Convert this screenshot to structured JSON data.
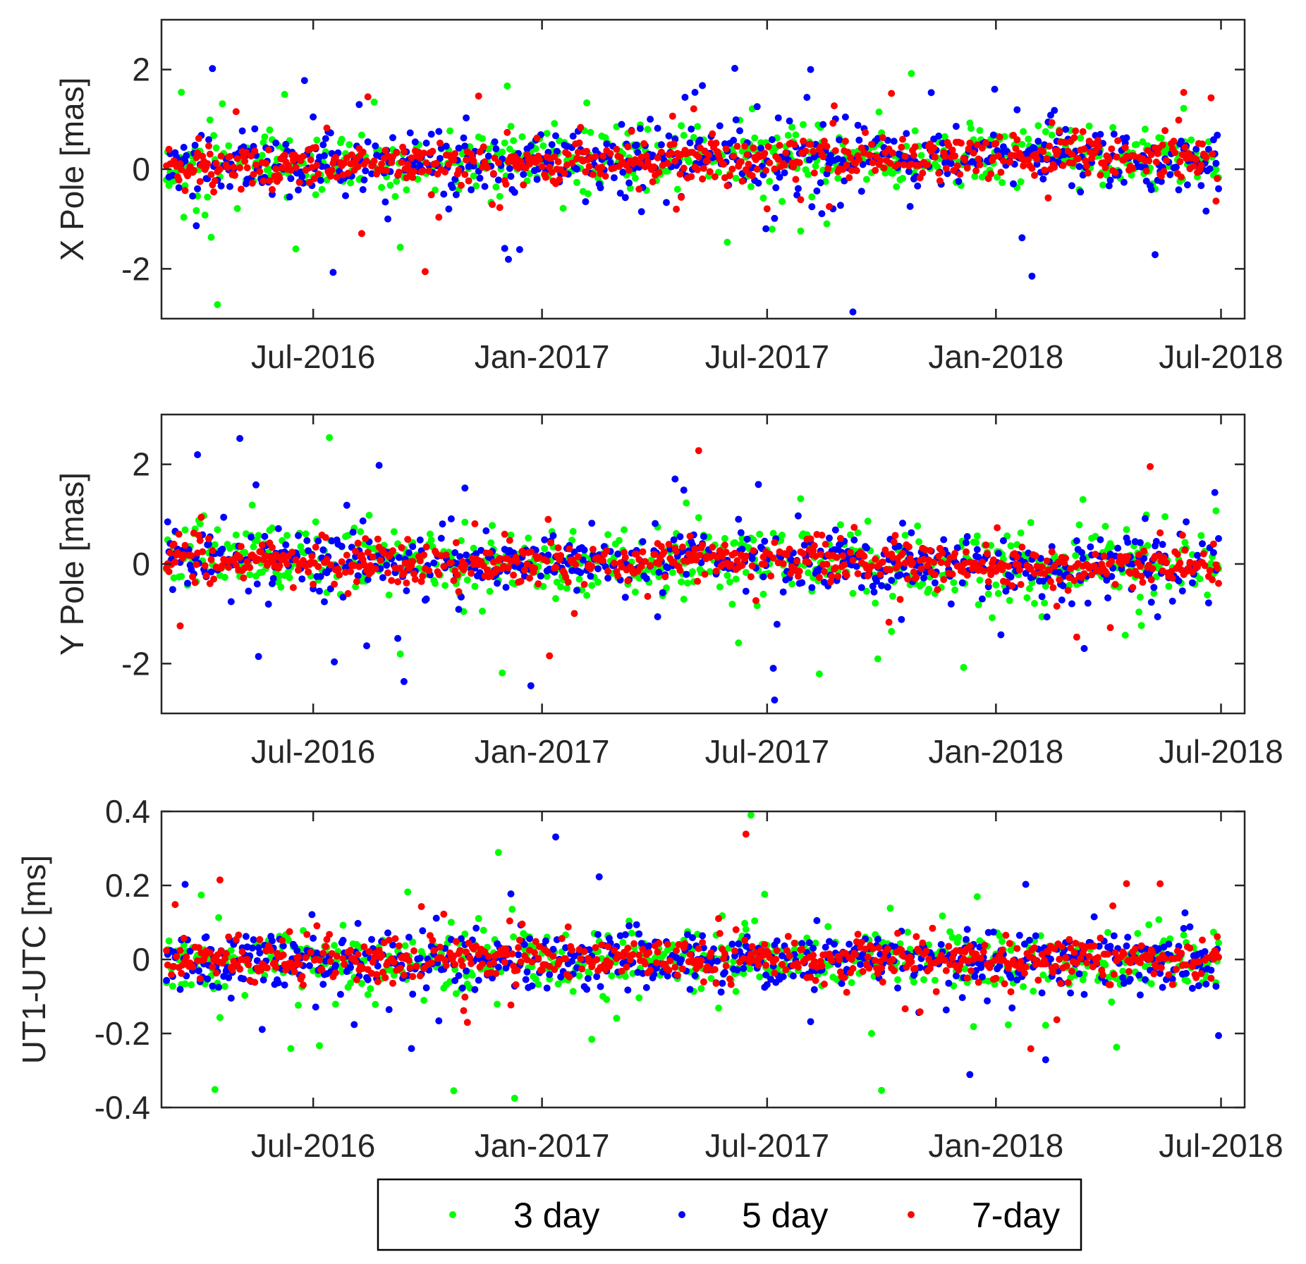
{
  "chart_data": [
    {
      "type": "scatter",
      "ylabel": "X Pole [mas]",
      "ylim": [
        -3,
        3
      ],
      "yticks": [
        -2,
        0,
        2
      ],
      "ytick_labels": [
        "-2",
        "0",
        "2"
      ],
      "xticks": [
        "2016-07-01",
        "2017-01-01",
        "2017-07-01",
        "2018-01-01",
        "2018-07-01"
      ],
      "xtick_labels": [
        "Jul-2016",
        "Jan-2017",
        "Jul-2017",
        "Jan-2018",
        "Jul-2018"
      ],
      "xlim": [
        "2016-03-01",
        "2018-07-20"
      ],
      "series": [
        {
          "name": "3 day",
          "color": "#00ff00",
          "spread": 0.55,
          "trend": [
            0.05,
            0.1,
            0.15,
            0.2,
            0.25,
            0.3,
            0.15
          ],
          "seed": 11
        },
        {
          "name": "5 day",
          "color": "#0000ff",
          "spread": 0.55,
          "trend": [
            0.05,
            0.1,
            0.15,
            0.2,
            0.25,
            0.3,
            0.15
          ],
          "seed": 23
        },
        {
          "name": "7-day",
          "color": "#ff0000",
          "spread": 0.35,
          "trend": [
            0.05,
            0.1,
            0.15,
            0.2,
            0.25,
            0.3,
            0.15
          ],
          "seed": 37
        }
      ]
    },
    {
      "type": "scatter",
      "ylabel": "Y Pole [mas]",
      "ylim": [
        -3,
        3
      ],
      "yticks": [
        -2,
        0,
        2
      ],
      "ytick_labels": [
        "-2",
        "0",
        "2"
      ],
      "xticks": [
        "2016-07-01",
        "2017-01-01",
        "2017-07-01",
        "2018-01-01",
        "2018-07-01"
      ],
      "xtick_labels": [
        "Jul-2016",
        "Jan-2017",
        "Jul-2017",
        "Jan-2018",
        "Jul-2018"
      ],
      "xlim": [
        "2016-03-01",
        "2018-07-20"
      ],
      "series": [
        {
          "name": "3 day",
          "color": "#00ff00",
          "spread": 0.6,
          "trend": [
            0.15,
            0.05,
            -0.05,
            0.1,
            0.05,
            -0.1,
            0.05
          ],
          "seed": 41
        },
        {
          "name": "5 day",
          "color": "#0000ff",
          "spread": 0.55,
          "trend": [
            0.15,
            0.05,
            -0.05,
            0.1,
            0.05,
            -0.1,
            0.05
          ],
          "seed": 53
        },
        {
          "name": "7-day",
          "color": "#ff0000",
          "spread": 0.35,
          "trend": [
            0.15,
            0.05,
            -0.05,
            0.1,
            0.05,
            -0.1,
            0.05
          ],
          "seed": 67
        }
      ]
    },
    {
      "type": "scatter",
      "ylabel": "UT1-UTC [ms]",
      "ylim": [
        -0.4,
        0.4
      ],
      "yticks": [
        -0.4,
        -0.2,
        0,
        0.2,
        0.4
      ],
      "ytick_labels": [
        "-0.4",
        "-0.2",
        "0",
        "0.2",
        "0.4"
      ],
      "xticks": [
        "2016-07-01",
        "2017-01-01",
        "2017-07-01",
        "2018-01-01",
        "2018-07-01"
      ],
      "xtick_labels": [
        "Jul-2016",
        "Jan-2017",
        "Jul-2017",
        "Jan-2018",
        "Jul-2018"
      ],
      "xlim": [
        "2016-03-01",
        "2018-07-20"
      ],
      "series": [
        {
          "name": "3 day",
          "color": "#00ff00",
          "spread": 0.075,
          "trend": [
            0,
            0,
            0,
            0,
            0,
            0,
            0
          ],
          "seed": 71
        },
        {
          "name": "5 day",
          "color": "#0000ff",
          "spread": 0.07,
          "trend": [
            0,
            0,
            0,
            0,
            0,
            0,
            0
          ],
          "seed": 83
        },
        {
          "name": "7-day",
          "color": "#ff0000",
          "spread": 0.05,
          "trend": [
            0,
            0,
            0,
            0,
            0,
            0,
            0
          ],
          "seed": 97
        }
      ]
    }
  ],
  "legend": {
    "position": "bottom-center",
    "items": [
      {
        "label": "3 day",
        "color": "#00ff00"
      },
      {
        "label": "5 day",
        "color": "#0000ff"
      },
      {
        "label": "7-day",
        "color": "#ff0000"
      }
    ]
  }
}
